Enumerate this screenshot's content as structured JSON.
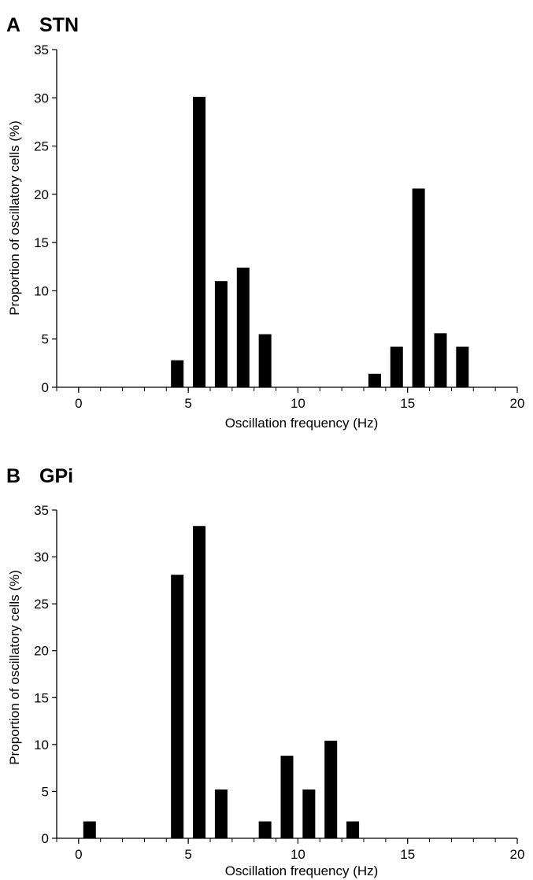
{
  "chart_data": [
    {
      "type": "bar",
      "panel": "A",
      "title": "STN",
      "xlabel": "Oscillation frequency (Hz)",
      "ylabel": "Proportion of oscillatory cells (%)",
      "xlim": [
        -1,
        20
      ],
      "ylim": [
        0,
        35
      ],
      "xticks": [
        0,
        5,
        10,
        15,
        20
      ],
      "yticks": [
        0,
        5,
        10,
        15,
        20,
        25,
        30,
        35
      ],
      "bar_color": "#000000",
      "x": [
        4,
        5,
        6,
        7,
        8,
        13,
        14,
        15,
        16,
        17
      ],
      "values": [
        2.8,
        30.1,
        11.0,
        12.4,
        5.5,
        1.4,
        4.2,
        20.6,
        5.6,
        4.2
      ]
    },
    {
      "type": "bar",
      "panel": "B",
      "title": "GPi",
      "xlabel": "Oscillation frequency (Hz)",
      "ylabel": "Proportion of oscillatory cells (%)",
      "xlim": [
        -1,
        20
      ],
      "ylim": [
        0,
        35
      ],
      "xticks": [
        0,
        5,
        10,
        15,
        20
      ],
      "yticks": [
        0,
        5,
        10,
        15,
        20,
        25,
        30,
        35
      ],
      "bar_color": "#000000",
      "x": [
        0,
        4,
        5,
        6,
        8,
        9,
        10,
        11,
        12
      ],
      "values": [
        1.8,
        28.1,
        33.3,
        5.2,
        1.8,
        8.8,
        5.2,
        10.4,
        1.8
      ]
    }
  ]
}
